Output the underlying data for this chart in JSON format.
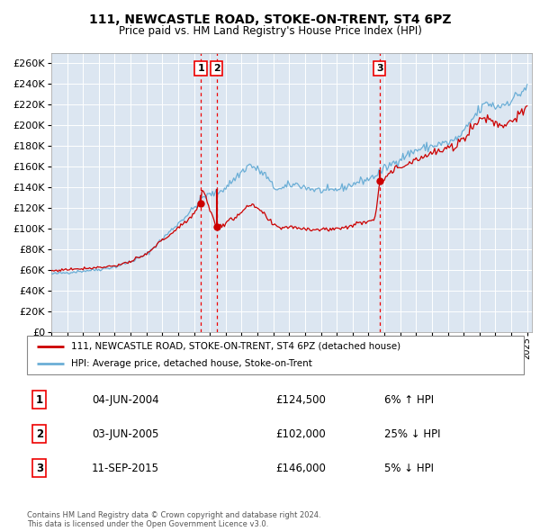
{
  "title": "111, NEWCASTLE ROAD, STOKE-ON-TRENT, ST4 6PZ",
  "subtitle": "Price paid vs. HM Land Registry's House Price Index (HPI)",
  "ylim": [
    0,
    270000
  ],
  "yticks": [
    0,
    20000,
    40000,
    60000,
    80000,
    100000,
    120000,
    140000,
    160000,
    180000,
    200000,
    220000,
    240000,
    260000
  ],
  "year_start": 1995,
  "year_end": 2025,
  "transaction_years": [
    2004.4274,
    2005.4192,
    2015.6959
  ],
  "transaction_prices": [
    124500,
    102000,
    146000
  ],
  "transaction_labels": [
    "1",
    "2",
    "3"
  ],
  "transaction_notes": [
    "04-JUN-2004",
    "03-JUN-2005",
    "11-SEP-2015"
  ],
  "transaction_prices_str": [
    "£124,500",
    "£102,000",
    "£146,000"
  ],
  "transaction_pct": [
    "6% ↑ HPI",
    "25% ↓ HPI",
    "5% ↓ HPI"
  ],
  "hpi_color": "#6baed6",
  "price_color": "#cc0000",
  "dashed_color": "#ee0000",
  "bg_color": "#dce6f1",
  "grid_color": "#ffffff",
  "legend1": "111, NEWCASTLE ROAD, STOKE-ON-TRENT, ST4 6PZ (detached house)",
  "legend2": "HPI: Average price, detached house, Stoke-on-Trent",
  "footer": "Contains HM Land Registry data © Crown copyright and database right 2024.\nThis data is licensed under the Open Government Licence v3.0."
}
